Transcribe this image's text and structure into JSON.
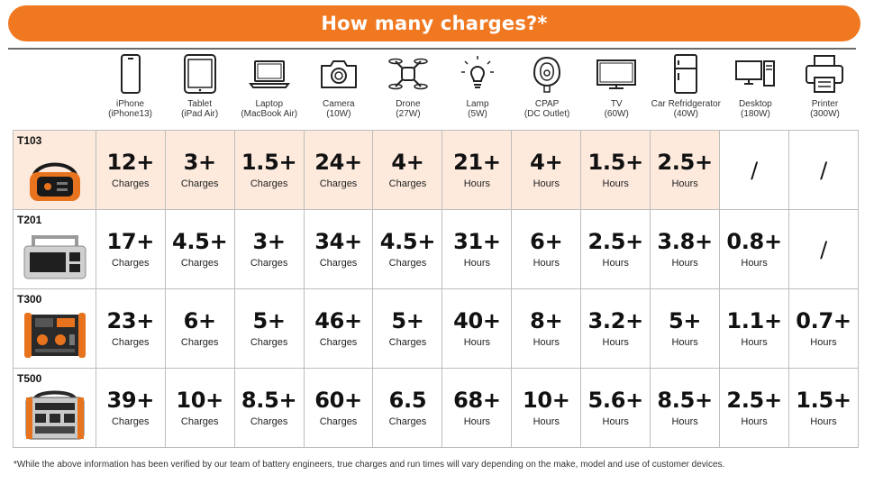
{
  "banner": {
    "title": "How many charges?*"
  },
  "devices": [
    {
      "name": "iPhone",
      "spec": "(iPhone13)",
      "icon": "phone-icon"
    },
    {
      "name": "Tablet",
      "spec": "(iPad Air)",
      "icon": "tablet-icon"
    },
    {
      "name": "Laptop",
      "spec": "(MacBook Air)",
      "icon": "laptop-icon"
    },
    {
      "name": "Camera",
      "spec": "(10W)",
      "icon": "camera-icon"
    },
    {
      "name": "Drone",
      "spec": "(27W)",
      "icon": "drone-icon"
    },
    {
      "name": "Lamp",
      "spec": "(5W)",
      "icon": "lamp-icon"
    },
    {
      "name": "CPAP",
      "spec": "(DC Outlet)",
      "icon": "cpap-mask-icon"
    },
    {
      "name": "TV",
      "spec": "(60W)",
      "icon": "tv-icon"
    },
    {
      "name": "Car Refridgerator",
      "spec": "(40W)",
      "icon": "refrigerator-icon"
    },
    {
      "name": "Desktop",
      "spec": "(180W)",
      "icon": "desktop-icon"
    },
    {
      "name": "Printer",
      "spec": "(300W)",
      "icon": "printer-icon"
    }
  ],
  "models": [
    {
      "name": "T103",
      "highlight": true,
      "image": "power-station-t103",
      "cells": [
        {
          "value": "12+",
          "unit": "Charges"
        },
        {
          "value": "3+",
          "unit": "Charges"
        },
        {
          "value": "1.5+",
          "unit": "Charges"
        },
        {
          "value": "24+",
          "unit": "Charges"
        },
        {
          "value": "4+",
          "unit": "Charges"
        },
        {
          "value": "21+",
          "unit": "Hours"
        },
        {
          "value": "4+",
          "unit": "Hours"
        },
        {
          "value": "1.5+",
          "unit": "Hours"
        },
        {
          "value": "2.5+",
          "unit": "Hours"
        },
        {
          "value": "/",
          "unit": ""
        },
        {
          "value": "/",
          "unit": ""
        }
      ]
    },
    {
      "name": "T201",
      "highlight": false,
      "image": "power-station-t201",
      "cells": [
        {
          "value": "17+",
          "unit": "Charges"
        },
        {
          "value": "4.5+",
          "unit": "Charges"
        },
        {
          "value": "3+",
          "unit": "Charges"
        },
        {
          "value": "34+",
          "unit": "Charges"
        },
        {
          "value": "4.5+",
          "unit": "Charges"
        },
        {
          "value": "31+",
          "unit": "Hours"
        },
        {
          "value": "6+",
          "unit": "Hours"
        },
        {
          "value": "2.5+",
          "unit": "Hours"
        },
        {
          "value": "3.8+",
          "unit": "Hours"
        },
        {
          "value": "0.8+",
          "unit": "Hours"
        },
        {
          "value": "/",
          "unit": ""
        }
      ]
    },
    {
      "name": "T300",
      "highlight": false,
      "image": "power-station-t300",
      "cells": [
        {
          "value": "23+",
          "unit": "Charges"
        },
        {
          "value": "6+",
          "unit": "Charges"
        },
        {
          "value": "5+",
          "unit": "Charges"
        },
        {
          "value": "46+",
          "unit": "Charges"
        },
        {
          "value": "5+",
          "unit": "Charges"
        },
        {
          "value": "40+",
          "unit": "Hours"
        },
        {
          "value": "8+",
          "unit": "Hours"
        },
        {
          "value": "3.2+",
          "unit": "Hours"
        },
        {
          "value": "5+",
          "unit": "Hours"
        },
        {
          "value": "1.1+",
          "unit": "Hours"
        },
        {
          "value": "0.7+",
          "unit": "Hours"
        }
      ]
    },
    {
      "name": "T500",
      "highlight": false,
      "image": "power-station-t500",
      "cells": [
        {
          "value": "39+",
          "unit": "Charges"
        },
        {
          "value": "10+",
          "unit": "Charges"
        },
        {
          "value": "8.5+",
          "unit": "Charges"
        },
        {
          "value": "60+",
          "unit": "Charges"
        },
        {
          "value": "6.5",
          "unit": "Charges"
        },
        {
          "value": "68+",
          "unit": "Hours"
        },
        {
          "value": "10+",
          "unit": "Hours"
        },
        {
          "value": "5.6+",
          "unit": "Hours"
        },
        {
          "value": "8.5+",
          "unit": "Hours"
        },
        {
          "value": "2.5+",
          "unit": "Hours"
        },
        {
          "value": "1.5+",
          "unit": "Hours"
        }
      ]
    }
  ],
  "footnote": "*While the above information has been verified by our team of battery engineers, true charges and run times will vary depending on the make, model and use of customer devices.",
  "colors": {
    "accent": "#f07821",
    "highlight_row": "#fdeadd",
    "grid_line": "#bdbdbd"
  }
}
